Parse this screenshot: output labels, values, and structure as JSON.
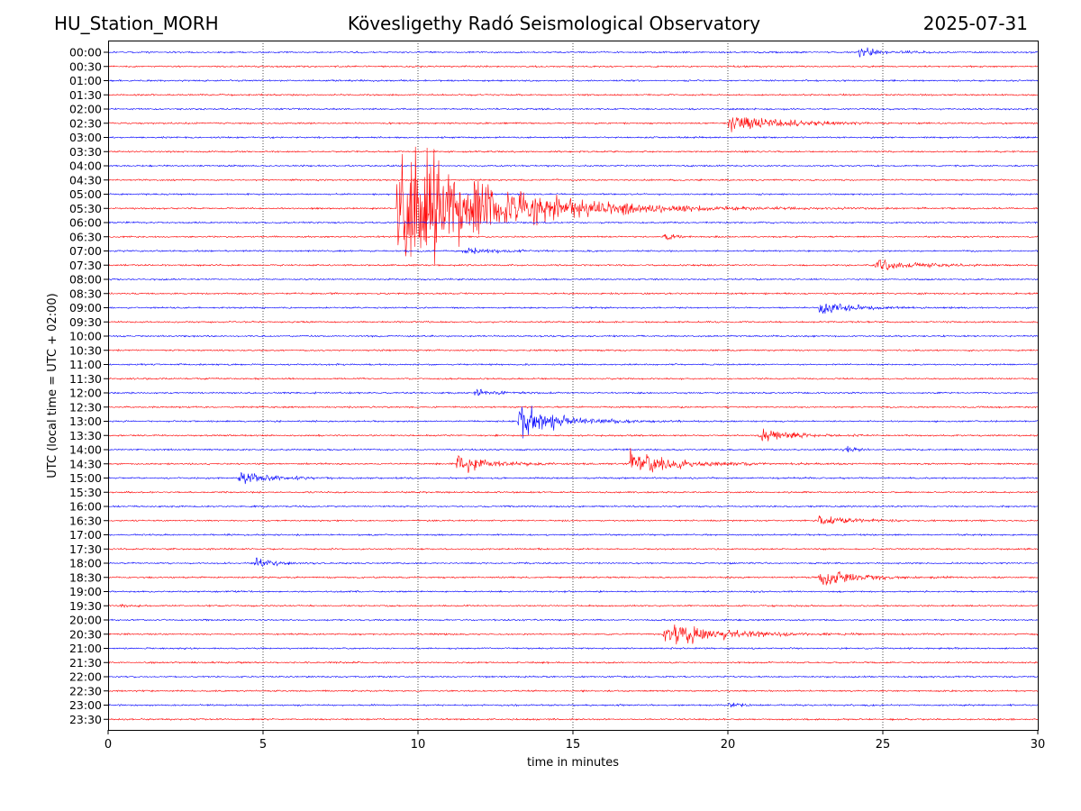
{
  "header": {
    "station": "HU_Station_MORH",
    "observatory": "Kövesligethy Radó Seismological Observatory",
    "date": "2025-07-31"
  },
  "chart_data": {
    "type": "line",
    "title": "Kövesligethy Radó Seismological Observatory",
    "xlabel": "time in minutes",
    "ylabel": "UTC (local time = UTC + 02:00)",
    "xlim": [
      0,
      30
    ],
    "x_ticks": [
      "0",
      "5",
      "10",
      "15",
      "20",
      "25",
      "30"
    ],
    "grid": "vertical dotted lines at every 5 minutes",
    "series_colors": [
      "#0000ff",
      "#ff0000"
    ],
    "rows": [
      "00:00",
      "00:30",
      "01:00",
      "01:30",
      "02:00",
      "02:30",
      "03:00",
      "03:30",
      "04:00",
      "04:30",
      "05:00",
      "05:30",
      "06:00",
      "06:30",
      "07:00",
      "07:30",
      "08:00",
      "08:30",
      "09:00",
      "09:30",
      "10:00",
      "10:30",
      "11:00",
      "11:30",
      "12:00",
      "12:30",
      "13:00",
      "13:30",
      "14:00",
      "14:30",
      "15:00",
      "15:30",
      "16:00",
      "16:30",
      "17:00",
      "17:30",
      "18:00",
      "18:30",
      "19:00",
      "19:30",
      "20:00",
      "20:30",
      "21:00",
      "21:30",
      "22:00",
      "22:30",
      "23:00",
      "23:30"
    ],
    "events": [
      {
        "row": "00:00",
        "start_min": 24.2,
        "amplitude": 5,
        "decay_min": 0.8
      },
      {
        "row": "02:30",
        "start_min": 20.0,
        "amplitude": 11,
        "decay_min": 1.6
      },
      {
        "row": "05:30",
        "start_min": 9.3,
        "amplitude": 100,
        "decay_min": 2.6
      },
      {
        "row": "06:30",
        "start_min": 17.9,
        "amplitude": 6,
        "decay_min": 0.3
      },
      {
        "row": "07:00",
        "start_min": 11.4,
        "amplitude": 5,
        "decay_min": 0.9
      },
      {
        "row": "07:30",
        "start_min": 24.7,
        "amplitude": 7,
        "decay_min": 1.2
      },
      {
        "row": "09:00",
        "start_min": 22.9,
        "amplitude": 9,
        "decay_min": 1.0
      },
      {
        "row": "12:00",
        "start_min": 11.8,
        "amplitude": 4,
        "decay_min": 0.6
      },
      {
        "row": "13:00",
        "start_min": 13.2,
        "amplitude": 22,
        "decay_min": 1.2
      },
      {
        "row": "13:30",
        "start_min": 21.0,
        "amplitude": 8,
        "decay_min": 1.0
      },
      {
        "row": "14:00",
        "start_min": 23.7,
        "amplitude": 6,
        "decay_min": 0.3
      },
      {
        "row": "14:30",
        "start_min": 11.2,
        "amplitude": 12,
        "decay_min": 1.0
      },
      {
        "row": "14:30",
        "start_min": 16.8,
        "amplitude": 14,
        "decay_min": 1.4
      },
      {
        "row": "15:00",
        "start_min": 4.2,
        "amplitude": 7,
        "decay_min": 1.0
      },
      {
        "row": "16:30",
        "start_min": 22.9,
        "amplitude": 6,
        "decay_min": 0.9
      },
      {
        "row": "18:00",
        "start_min": 4.7,
        "amplitude": 6,
        "decay_min": 0.6
      },
      {
        "row": "18:30",
        "start_min": 22.9,
        "amplitude": 12,
        "decay_min": 1.1
      },
      {
        "row": "19:30",
        "start_min": 0.3,
        "amplitude": 4,
        "decay_min": 0.2
      },
      {
        "row": "20:30",
        "start_min": 17.9,
        "amplitude": 18,
        "decay_min": 1.5
      },
      {
        "row": "23:00",
        "start_min": 20.0,
        "amplitude": 3,
        "decay_min": 0.4
      }
    ]
  }
}
